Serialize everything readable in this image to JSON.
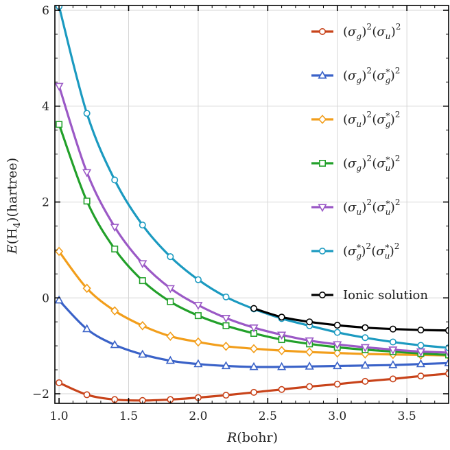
{
  "chart_data": {
    "type": "line",
    "xlabel": "R(bohr)",
    "ylabel": "E(H4)(hartree)",
    "xlim": [
      0.97,
      3.8
    ],
    "ylim": [
      -2.2,
      6.1
    ],
    "x_ticks": [
      1.0,
      1.5,
      2.0,
      2.5,
      3.0,
      3.5
    ],
    "x_tick_labels": [
      "1.0",
      "1.5",
      "2.0",
      "2.5",
      "3.0",
      "3.5"
    ],
    "y_ticks": [
      -2,
      0,
      2,
      4,
      6
    ],
    "y_tick_labels": [
      "−2",
      "0",
      "2",
      "4",
      "6"
    ],
    "grid": true,
    "legend_position": "top-right",
    "series": [
      {
        "name": "(σg)2(σu)2",
        "color": "#c8431a",
        "marker": "circle",
        "x": [
          1.0,
          1.2,
          1.4,
          1.6,
          1.8,
          2.0,
          2.2,
          2.4,
          2.6,
          2.8,
          3.0,
          3.2,
          3.4,
          3.6,
          3.8
        ],
        "y": [
          -1.77,
          -2.02,
          -2.12,
          -2.14,
          -2.12,
          -2.08,
          -2.03,
          -1.97,
          -1.91,
          -1.85,
          -1.8,
          -1.74,
          -1.69,
          -1.63,
          -1.58
        ]
      },
      {
        "name": "(σg)2(σg*)2",
        "color": "#3a62c8",
        "marker": "triangle-up",
        "x": [
          1.0,
          1.2,
          1.4,
          1.6,
          1.8,
          2.0,
          2.2,
          2.4,
          2.6,
          2.8,
          3.0,
          3.2,
          3.4,
          3.6,
          3.8
        ],
        "y": [
          -0.05,
          -0.65,
          -0.98,
          -1.18,
          -1.31,
          -1.38,
          -1.42,
          -1.44,
          -1.44,
          -1.43,
          -1.42,
          -1.41,
          -1.4,
          -1.38,
          -1.36
        ]
      },
      {
        "name": "(σu)2(σg*)2",
        "color": "#f29e1b",
        "marker": "diamond",
        "x": [
          1.0,
          1.2,
          1.4,
          1.6,
          1.8,
          2.0,
          2.2,
          2.4,
          2.6,
          2.8,
          3.0,
          3.2,
          3.4,
          3.6,
          3.8
        ],
        "y": [
          0.97,
          0.2,
          -0.27,
          -0.58,
          -0.8,
          -0.92,
          -1.01,
          -1.06,
          -1.1,
          -1.13,
          -1.15,
          -1.17,
          -1.18,
          -1.19,
          -1.2
        ]
      },
      {
        "name": "(σg)2(σu*)2",
        "color": "#22a02a",
        "marker": "square",
        "x": [
          1.0,
          1.2,
          1.4,
          1.6,
          1.8,
          2.0,
          2.2,
          2.4,
          2.6,
          2.8,
          3.0,
          3.2,
          3.4,
          3.6,
          3.8
        ],
        "y": [
          3.62,
          2.02,
          1.02,
          0.36,
          -0.08,
          -0.37,
          -0.58,
          -0.74,
          -0.87,
          -0.96,
          -1.03,
          -1.08,
          -1.12,
          -1.16,
          -1.19
        ]
      },
      {
        "name": "(σu)2(σu*)2",
        "color": "#9b59c6",
        "marker": "triangle-down",
        "x": [
          1.0,
          1.2,
          1.4,
          1.6,
          1.8,
          2.0,
          2.2,
          2.4,
          2.6,
          2.8,
          3.0,
          3.2,
          3.4,
          3.6,
          3.8
        ],
        "y": [
          4.42,
          2.62,
          1.48,
          0.72,
          0.2,
          -0.15,
          -0.42,
          -0.62,
          -0.77,
          -0.89,
          -0.97,
          -1.03,
          -1.08,
          -1.12,
          -1.14
        ]
      },
      {
        "name": "(σg*)2(σu*)2",
        "color": "#1b9ac0",
        "marker": "circle",
        "x": [
          1.0,
          1.2,
          1.4,
          1.6,
          1.8,
          2.0,
          2.2,
          2.4,
          2.6,
          2.8,
          3.0,
          3.2,
          3.4,
          3.6,
          3.8
        ],
        "y": [
          6.08,
          3.85,
          2.46,
          1.52,
          0.86,
          0.38,
          0.02,
          -0.23,
          -0.43,
          -0.58,
          -0.72,
          -0.83,
          -0.92,
          -0.99,
          -1.04
        ]
      },
      {
        "name": "Ionic solution",
        "color": "#000000",
        "marker": "circle",
        "x": [
          2.4,
          2.6,
          2.8,
          3.0,
          3.2,
          3.4,
          3.6,
          3.8
        ],
        "y": [
          -0.22,
          -0.4,
          -0.5,
          -0.57,
          -0.62,
          -0.65,
          -0.67,
          -0.68
        ]
      }
    ]
  }
}
